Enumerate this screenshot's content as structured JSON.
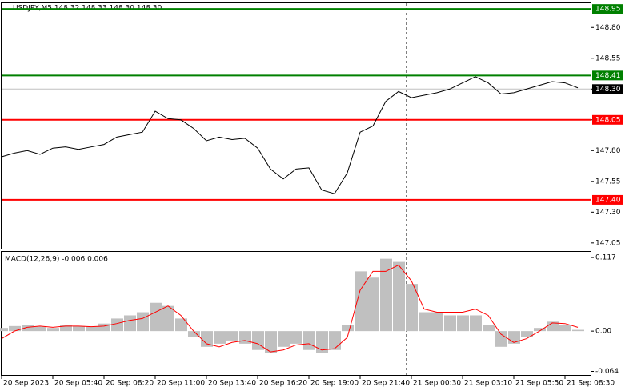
{
  "chart_data": [
    {
      "type": "line",
      "title": "USDJPY,M5  148.32 148.33 148.30 148.30",
      "x": [
        0,
        8,
        16,
        24,
        32,
        40,
        48,
        56,
        64,
        72,
        80,
        88,
        96,
        104,
        112,
        120,
        128,
        136,
        144,
        152,
        160,
        168,
        176,
        184,
        192,
        200,
        208,
        216,
        224,
        232,
        240,
        248,
        256,
        264,
        272,
        280,
        288,
        296,
        304,
        312,
        320,
        328,
        336,
        344,
        352,
        360
      ],
      "series": [
        {
          "color": "#000000",
          "values": [
            147.75,
            147.78,
            147.8,
            147.77,
            147.82,
            147.83,
            147.81,
            147.83,
            147.85,
            147.91,
            147.93,
            147.95,
            148.12,
            148.06,
            148.05,
            147.98,
            147.88,
            147.91,
            147.89,
            147.9,
            147.82,
            147.65,
            147.57,
            147.65,
            147.66,
            147.48,
            147.45,
            147.62,
            147.95,
            148.0,
            148.2,
            148.28,
            148.23,
            148.25,
            148.27,
            148.3,
            148.35,
            148.4,
            148.35,
            148.26,
            148.27,
            148.3,
            148.33,
            148.36,
            148.35,
            148.31
          ]
        }
      ],
      "levels": [
        {
          "value": 148.95,
          "label": "148.95",
          "color": "#008000"
        },
        {
          "value": 148.41,
          "label": "148.41",
          "color": "#008000"
        },
        {
          "value": 148.05,
          "label": "148.05",
          "color": "#ff0000"
        },
        {
          "value": 147.4,
          "label": "147.40",
          "color": "#ff0000"
        }
      ],
      "last_price": {
        "value": 148.3,
        "label": "148.30"
      },
      "xlim": [
        0,
        368
      ],
      "ylim": [
        147.01,
        148.99
      ],
      "yticks": [
        147.05,
        {
          "value": 147.3,
          "label": "147.30"
        },
        147.55,
        {
          "value": 147.8,
          "label": "147.80"
        },
        148.05,
        {
          "value": 148.3,
          "label": "148.30"
        },
        148.55,
        {
          "value": 148.8,
          "label": "148.80"
        }
      ]
    },
    {
      "type": "macd",
      "title": "MACD(12,26,9) -0.006 0.006",
      "x": [
        0,
        8,
        16,
        24,
        32,
        40,
        48,
        56,
        64,
        72,
        80,
        88,
        96,
        104,
        112,
        120,
        128,
        136,
        144,
        152,
        160,
        168,
        176,
        184,
        192,
        200,
        208,
        216,
        224,
        232,
        240,
        248,
        256,
        264,
        272,
        280,
        288,
        296,
        304,
        312,
        320,
        328,
        336,
        344,
        352,
        360
      ],
      "series": [
        {
          "color": "#c0c0c0",
          "values": [
            0.005,
            0.008,
            0.01,
            0.007,
            0.005,
            0.01,
            0.008,
            0.007,
            0.012,
            0.02,
            0.025,
            0.03,
            0.045,
            0.04,
            0.02,
            -0.01,
            -0.025,
            -0.02,
            -0.015,
            -0.02,
            -0.03,
            -0.035,
            -0.025,
            -0.02,
            -0.03,
            -0.035,
            -0.03,
            0.01,
            0.095,
            0.085,
            0.115,
            0.11,
            0.075,
            0.03,
            0.03,
            0.025,
            0.025,
            0.025,
            0.01,
            -0.025,
            -0.02,
            -0.01,
            0.005,
            0.015,
            0.01,
            0.002
          ]
        },
        {
          "color": "#ff0000",
          "values": [
            -0.012,
            0.0,
            0.006,
            0.008,
            0.006,
            0.008,
            0.008,
            0.007,
            0.008,
            0.012,
            0.017,
            0.02,
            0.03,
            0.04,
            0.025,
            0.0,
            -0.02,
            -0.025,
            -0.018,
            -0.015,
            -0.02,
            -0.033,
            -0.03,
            -0.022,
            -0.02,
            -0.03,
            -0.028,
            -0.01,
            0.065,
            0.095,
            0.095,
            0.105,
            0.08,
            0.035,
            0.03,
            0.03,
            0.03,
            0.035,
            0.025,
            -0.005,
            -0.018,
            -0.012,
            0.0,
            0.013,
            0.012,
            0.006
          ]
        }
      ],
      "xlim": [
        0,
        368
      ],
      "ylim": [
        -0.071,
        0.126
      ],
      "yticks": [
        -0.064,
        {
          "value": 0,
          "label": "0.00"
        },
        0.117
      ],
      "xticks": [
        {
          "value": 0,
          "label": "20 Sep 2023"
        },
        {
          "value": 32,
          "label": "20 Sep 05:40"
        },
        {
          "value": 64,
          "label": "20 Sep 08:20"
        },
        {
          "value": 96,
          "label": "20 Sep 11:00"
        },
        {
          "value": 128,
          "label": "20 Sep 13:40"
        },
        {
          "value": 160,
          "label": "20 Sep 16:20"
        },
        {
          "value": 192,
          "label": "20 Sep 19:00"
        },
        {
          "value": 224,
          "label": "20 Sep 21:40"
        },
        {
          "value": 256,
          "label": "21 Sep 00:30"
        },
        {
          "value": 288,
          "label": "21 Sep 03:10"
        },
        {
          "value": 320,
          "label": "21 Sep 05:50"
        },
        {
          "value": 352,
          "label": "21 Sep 08:30"
        }
      ]
    }
  ]
}
